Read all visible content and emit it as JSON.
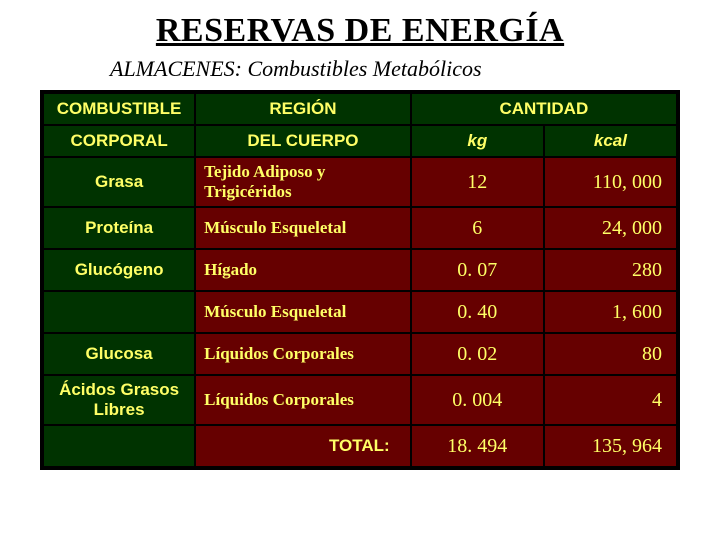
{
  "title": "RESERVAS DE ENERGÍA",
  "subtitle": "ALMACENES: Combustibles Metabólicos",
  "header": {
    "col1_line1": "COMBUSTIBLE",
    "col1_line2": "CORPORAL",
    "col2_line1": "REGIÓN",
    "col2_line2": "DEL CUERPO",
    "col34_line1": "CANTIDAD",
    "col3_line2": "kg",
    "col4_line2": "kcal"
  },
  "rows": [
    {
      "fuel": "Grasa",
      "region": "Tejido Adiposo y Trigicéridos",
      "kg": "12",
      "kcal": "110, 000"
    },
    {
      "fuel": "Proteína",
      "region": "Músculo Esqueletal",
      "kg": "6",
      "kcal": "24, 000"
    },
    {
      "fuel": "Glucógeno",
      "region": "Hígado",
      "kg": "0. 07",
      "kcal": "280"
    },
    {
      "fuel": "",
      "region": "Músculo Esqueletal",
      "kg": "0. 40",
      "kcal": "1, 600"
    },
    {
      "fuel": "Glucosa",
      "region": "Líquidos Corporales",
      "kg": "0. 02",
      "kcal": "80"
    },
    {
      "fuel": "Ácidos Grasos Libres",
      "region": "Líquidos Corporales",
      "kg": "0. 004",
      "kcal": "4"
    }
  ],
  "total": {
    "label": "TOTAL:",
    "kg": "18. 494",
    "kcal": "135, 964"
  },
  "colors": {
    "header_bg": "#003300",
    "data_bg": "#660000",
    "fg": "#ffff66",
    "border": "#000000",
    "page_bg": "#ffffff"
  }
}
